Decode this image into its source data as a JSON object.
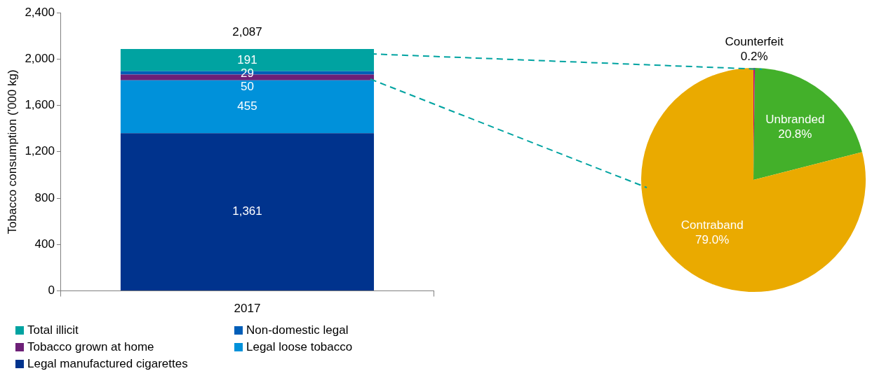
{
  "chart_data": [
    {
      "type": "bar",
      "ylabel": "Tobacco consumption ('000 kg)",
      "categories": [
        "2017"
      ],
      "stacked": true,
      "series": [
        {
          "name": "Legal manufactured cigarettes",
          "color": "#00338d",
          "values": [
            1361
          ],
          "value_labels": [
            "1,361"
          ]
        },
        {
          "name": "Legal loose tobacco",
          "color": "#0091da",
          "values": [
            455
          ],
          "value_labels": [
            "455"
          ]
        },
        {
          "name": "Tobacco grown at home",
          "color": "#6d2077",
          "values": [
            50
          ],
          "value_labels": [
            "50"
          ]
        },
        {
          "name": "Non-domestic legal",
          "color": "#005eb8",
          "values": [
            29
          ],
          "value_labels": [
            "29"
          ]
        },
        {
          "name": "Total illicit",
          "color": "#00a3a1",
          "values": [
            191
          ],
          "value_labels": [
            "191"
          ]
        }
      ],
      "totals": [
        "2,087"
      ],
      "ylim": [
        0,
        2400
      ],
      "yticks": [
        {
          "value": 0,
          "label": "0"
        },
        {
          "value": 400,
          "label": "400"
        },
        {
          "value": 800,
          "label": "800"
        },
        {
          "value": 1200,
          "label": "1,200"
        },
        {
          "value": 1600,
          "label": "1,600"
        },
        {
          "value": 2000,
          "label": "2,000"
        },
        {
          "value": 2400,
          "label": "2,400"
        }
      ],
      "grid": false,
      "legend": "bottom"
    },
    {
      "type": "pie",
      "categories": [
        "Counterfeit",
        "Unbranded",
        "Contraband"
      ],
      "values": [
        0.2,
        20.8,
        79.0
      ],
      "colors": [
        "#c6007e",
        "#43b02a",
        "#eaaa00"
      ],
      "value_labels": [
        "0.2%",
        "20.8%",
        "79.0%"
      ]
    }
  ]
}
